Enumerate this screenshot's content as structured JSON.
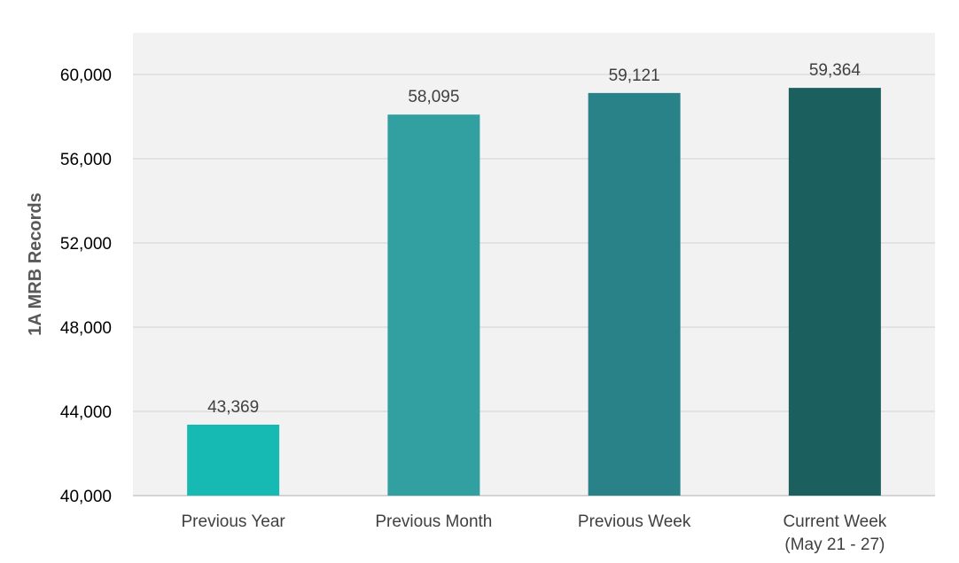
{
  "chart_data": {
    "type": "bar",
    "categories": [
      "Previous Year",
      "Previous Month",
      "Previous Week",
      "Current Week (May 21 - 27)"
    ],
    "category_lines": [
      [
        "Previous Year"
      ],
      [
        "Previous Month"
      ],
      [
        "Previous Week"
      ],
      [
        "Current Week",
        "(May 21 - 27)"
      ]
    ],
    "values": [
      43369,
      58095,
      59121,
      59364
    ],
    "data_labels": [
      "43,369",
      "58,095",
      "59,121",
      "59,364"
    ],
    "bar_colors": [
      "#17BAB3",
      "#329FA1",
      "#288288",
      "#1B5F5E"
    ],
    "title": "",
    "xlabel": "",
    "ylabel": "1A MRB Records",
    "ylim": [
      40000,
      62000
    ],
    "yticks": [
      40000,
      44000,
      48000,
      52000,
      56000,
      60000
    ],
    "ytick_labels": [
      "40,000",
      "44,000",
      "48,000",
      "52,000",
      "56,000",
      "60,000"
    ],
    "grid": true,
    "plot_background": "#F2F2F2",
    "grid_color": "#D9D9D9",
    "legend": "none"
  }
}
